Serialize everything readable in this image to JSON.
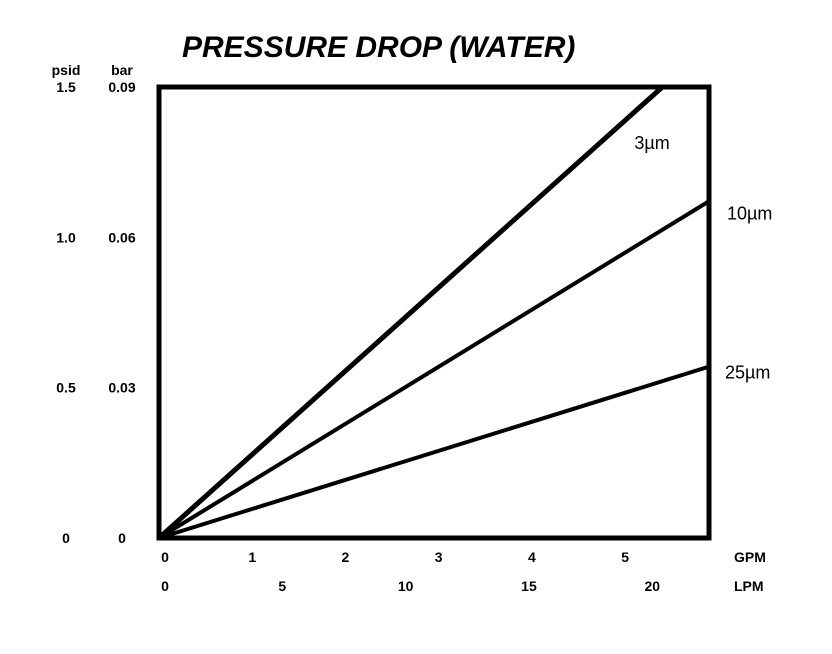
{
  "chart_data": {
    "type": "line",
    "title": "PRESSURE DROP (WATER)",
    "y_axes": [
      {
        "unit": "psid",
        "ticks": [
          "0",
          "0.5",
          "1.0",
          "1.5"
        ],
        "values": [
          0,
          0.5,
          1.0,
          1.5
        ],
        "ylim": [
          0,
          1.5
        ]
      },
      {
        "unit": "bar",
        "ticks": [
          "0",
          "0.03",
          "0.06",
          "0.09"
        ],
        "values": [
          0,
          0.03,
          0.06,
          0.09
        ],
        "ylim": [
          0,
          0.09
        ]
      }
    ],
    "x_axes": [
      {
        "unit": "GPM",
        "ticks": [
          "0",
          "1",
          "2",
          "3",
          "4",
          "5"
        ],
        "values": [
          0,
          1,
          2,
          3,
          4,
          5
        ],
        "xlim": [
          0,
          5.9
        ]
      },
      {
        "unit": "LPM",
        "ticks": [
          "0",
          "5",
          "10",
          "15",
          "20"
        ],
        "values": [
          0,
          5,
          10,
          15,
          20
        ],
        "xlim": [
          0,
          22.3
        ]
      }
    ],
    "series": [
      {
        "name": "3µm",
        "x": [
          0,
          5.4
        ],
        "y": [
          0,
          1.5
        ]
      },
      {
        "name": "10µm",
        "x": [
          0,
          5.9
        ],
        "y": [
          0,
          1.12
        ]
      },
      {
        "name": "25µm",
        "x": [
          0,
          5.9
        ],
        "y": [
          0,
          0.57
        ]
      }
    ],
    "grid": false,
    "legend": "inline labels at line ends",
    "line_color": "#000000"
  }
}
